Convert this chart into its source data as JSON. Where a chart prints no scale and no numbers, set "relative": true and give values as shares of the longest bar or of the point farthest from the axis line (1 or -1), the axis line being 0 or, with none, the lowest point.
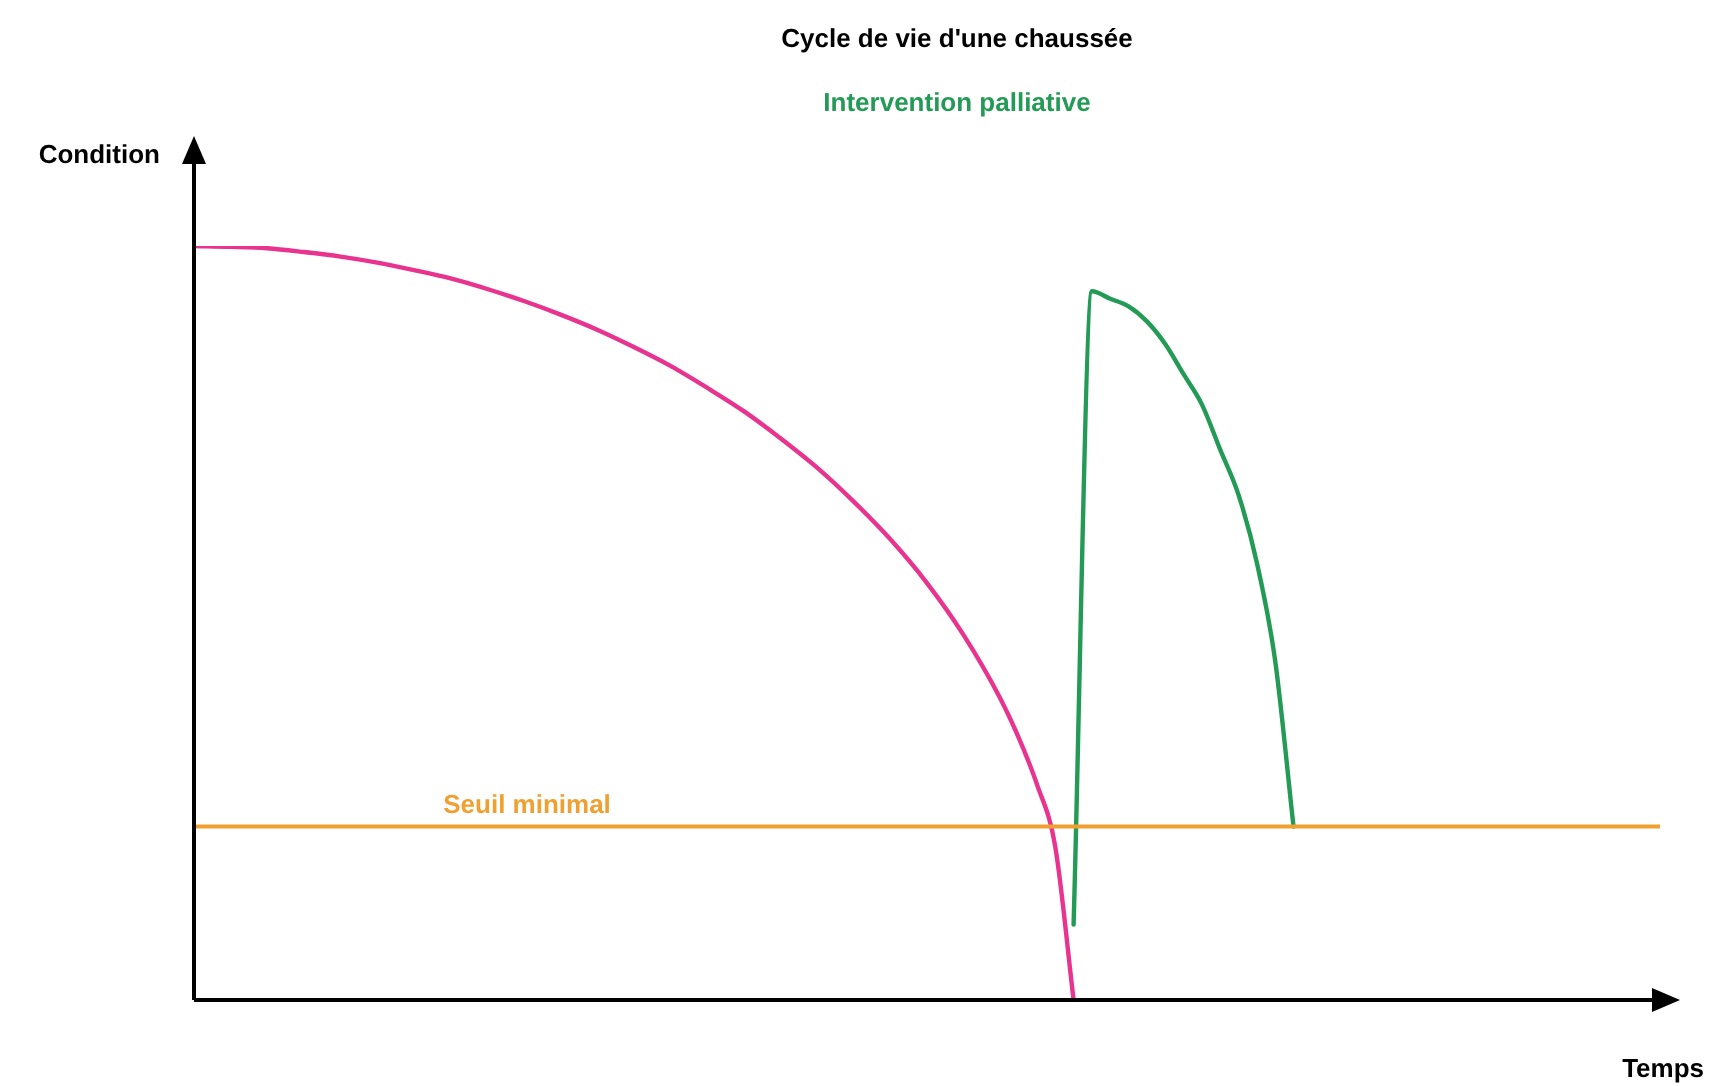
{
  "chart_data": {
    "type": "line",
    "title": "Cycle de vie d'une chaussée",
    "xlabel": "Temps",
    "ylabel": "Condition",
    "relative": true,
    "marker": "none",
    "categories": [
      null,
      null,
      null,
      null,
      null,
      null,
      null,
      null,
      null,
      null,
      null,
      null,
      null,
      null,
      null,
      null,
      null,
      null,
      null,
      null,
      null,
      null,
      null,
      null,
      null,
      null,
      null,
      null,
      null,
      null,
      null,
      null,
      null,
      null,
      null,
      null,
      null,
      null,
      null,
      null,
      null,
      null,
      null,
      null,
      null,
      null,
      null,
      null,
      null,
      null,
      null,
      null,
      null,
      null,
      null,
      null,
      null,
      null,
      null,
      null,
      null,
      null,
      null,
      null,
      null,
      null,
      null,
      null,
      null,
      null,
      null,
      null,
      null,
      null,
      null,
      null,
      null,
      null,
      null,
      null,
      null
    ],
    "series": [
      {
        "color": "#e8338f",
        "values": [
          1.0,
          null,
          0.999,
          null,
          0.997,
          null,
          0.992,
          null,
          0.986,
          null,
          0.978,
          null,
          0.968,
          null,
          0.957,
          null,
          0.943,
          null,
          0.927,
          null,
          0.909,
          null,
          0.889,
          null,
          0.866,
          null,
          0.841,
          null,
          0.812,
          null,
          0.781,
          null,
          0.745,
          null,
          0.706,
          null,
          0.661,
          null,
          0.611,
          null,
          0.553,
          null,
          0.484,
          null,
          0.4,
          0.348,
          0.286,
          0.203,
          0,
          null,
          null,
          null,
          null,
          null,
          null,
          null,
          null,
          null,
          null,
          null,
          null,
          null,
          null,
          null,
          null,
          null,
          null,
          null,
          null,
          null,
          null,
          null,
          null,
          null,
          null,
          null,
          null,
          null,
          null,
          null,
          null
        ]
      },
      {
        "name": "Intervention palliative",
        "color": "#239a55",
        "values": [
          null,
          null,
          null,
          null,
          null,
          null,
          null,
          null,
          null,
          null,
          null,
          null,
          null,
          null,
          null,
          null,
          null,
          null,
          null,
          null,
          null,
          null,
          null,
          null,
          null,
          null,
          null,
          null,
          null,
          null,
          null,
          null,
          null,
          null,
          null,
          null,
          null,
          null,
          null,
          null,
          null,
          null,
          null,
          null,
          null,
          null,
          null,
          null,
          0.1,
          0.94,
          0.93,
          0.92,
          0.9,
          0.87,
          0.83,
          0.79,
          0.73,
          0.67,
          0.58,
          0.45,
          0.23,
          null,
          null,
          null,
          null,
          null,
          null,
          null,
          null,
          null,
          null,
          null,
          null,
          null,
          null,
          null,
          null,
          null,
          null,
          null,
          null
        ]
      }
    ],
    "ref_lines": [
      {
        "axis": "y",
        "value": 0.23,
        "label": "Seuil minimal",
        "color": "#f0a030"
      }
    ]
  }
}
